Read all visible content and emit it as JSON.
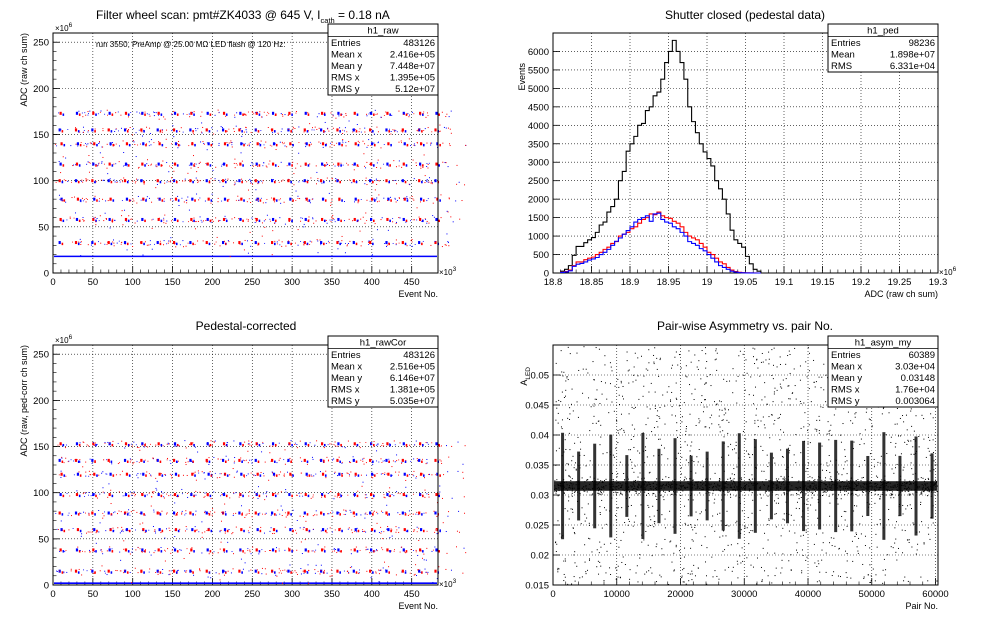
{
  "chart_data": [
    {
      "type": "scatter",
      "id": "p1",
      "title": "Filter wheel scan: pmt#ZK4033 @   645 V, I",
      "title_sub": "cath",
      "title_tail": " = 0.18 nA",
      "annotation": "run 3550, PreAmp @ 25.00 MΩ LED flash @  120 Hz:",
      "xlabel": "Event No.",
      "ylabel": "ADC (raw ch sum)",
      "x_multiplier": "×10",
      "x_multiplier_exp": "3",
      "y_multiplier": "×10",
      "y_multiplier_exp": "6",
      "xlim": [
        0,
        483
      ],
      "ylim": [
        0,
        260
      ],
      "xticks": [
        "0",
        "50",
        "100",
        "150",
        "200",
        "250",
        "300",
        "350",
        "400",
        "450"
      ],
      "yticks": [
        "0",
        "50",
        "100",
        "150",
        "200",
        "250"
      ],
      "grid": true,
      "stats": {
        "name": "h1_raw",
        "rows": [
          [
            "Entries",
            "483126"
          ],
          [
            "Mean x",
            "2.416e+05"
          ],
          [
            "Mean y",
            "7.448e+07"
          ],
          [
            "RMS x",
            "1.395e+05"
          ],
          [
            "RMS y",
            "5.12e+07"
          ]
        ]
      },
      "levels": [
        18,
        33,
        58,
        80,
        100,
        118,
        140,
        155,
        173
      ],
      "series": [
        {
          "color": "#0000ff",
          "style": "alternating-blocks"
        },
        {
          "color": "#ff0000",
          "style": "alternating-blocks"
        }
      ]
    },
    {
      "type": "histogram",
      "id": "p2",
      "title": "Shutter closed (pedestal data)",
      "xlabel": "ADC (raw ch sum)",
      "ylabel": "Events",
      "x_multiplier": "×10",
      "x_multiplier_exp": "6",
      "xlim": [
        18.8,
        19.3
      ],
      "ylim": [
        0,
        6500
      ],
      "xticks": [
        "18.8",
        "18.85",
        "18.9",
        "18.95",
        "19",
        "19.05",
        "19.1",
        "19.15",
        "19.2",
        "19.25",
        "19.3"
      ],
      "yticks": [
        "0",
        "500",
        "1000",
        "1500",
        "2000",
        "2500",
        "3000",
        "3500",
        "4000",
        "4500",
        "5000",
        "5500",
        "6000"
      ],
      "grid": true,
      "stats": {
        "name": "h1_ped",
        "rows": [
          [
            "Entries",
            "98236"
          ],
          [
            "Mean",
            "1.898e+07"
          ],
          [
            "RMS",
            "6.331e+04"
          ]
        ]
      },
      "bin_start": 18.81,
      "bin_width": 0.005,
      "series": [
        {
          "color": "#000000",
          "values": [
            50,
            100,
            200,
            480,
            720,
            720,
            820,
            900,
            960,
            1100,
            1300,
            1380,
            1650,
            1800,
            2000,
            2500,
            2750,
            3300,
            3500,
            3700,
            4000,
            4050,
            4400,
            4500,
            4800,
            4900,
            5250,
            5700,
            6000,
            6300,
            6000,
            5700,
            5250,
            4500,
            4100,
            3800,
            3500,
            3280,
            3100,
            2900,
            2500,
            2280,
            2000,
            1600,
            1160,
            900,
            800,
            700,
            450,
            250,
            100,
            50
          ]
        },
        {
          "color": "#ff0000",
          "values": [
            20,
            40,
            80,
            200,
            300,
            300,
            360,
            400,
            430,
            500,
            560,
            640,
            700,
            800,
            850,
            1000,
            1050,
            1100,
            1200,
            1250,
            1350,
            1450,
            1500,
            1600,
            1580,
            1650,
            1550,
            1500,
            1480,
            1400,
            1350,
            1250,
            1100,
            1000,
            950,
            900,
            800,
            700,
            560,
            500,
            400,
            300,
            250,
            150,
            80,
            40,
            20,
            10,
            5,
            2,
            1,
            0
          ]
        },
        {
          "color": "#0000ff",
          "values": [
            15,
            30,
            60,
            180,
            240,
            260,
            300,
            350,
            380,
            420,
            500,
            560,
            640,
            750,
            860,
            950,
            1050,
            1150,
            1250,
            1380,
            1450,
            1500,
            1550,
            1400,
            1600,
            1620,
            1450,
            1380,
            1350,
            1250,
            1200,
            1100,
            1000,
            850,
            800,
            750,
            660,
            600,
            500,
            400,
            300,
            200,
            150,
            100,
            50,
            25,
            10,
            5,
            2,
            1,
            0,
            0
          ]
        }
      ]
    },
    {
      "type": "scatter",
      "id": "p3",
      "title": "Pedestal-corrected",
      "xlabel": "Event No.",
      "ylabel": "ADC (raw, ped-corr ch sum)",
      "x_multiplier": "×10",
      "x_multiplier_exp": "3",
      "y_multiplier": "×10",
      "y_multiplier_exp": "6",
      "xlim": [
        0,
        483
      ],
      "ylim": [
        0,
        260
      ],
      "xticks": [
        "0",
        "50",
        "100",
        "150",
        "200",
        "250",
        "300",
        "350",
        "400",
        "450"
      ],
      "yticks": [
        "0",
        "50",
        "100",
        "150",
        "200",
        "250"
      ],
      "grid": true,
      "stats": {
        "name": "h1_rawCor",
        "rows": [
          [
            "Entries",
            "483126"
          ],
          [
            "Mean x",
            "2.516e+05"
          ],
          [
            "Mean y",
            "6.146e+07"
          ],
          [
            "RMS x",
            "1.381e+05"
          ],
          [
            "RMS y",
            "5.035e+07"
          ]
        ]
      },
      "levels": [
        2,
        15,
        38,
        60,
        78,
        98,
        120,
        135,
        153
      ],
      "series": [
        {
          "color": "#0000ff",
          "style": "alternating-blocks"
        },
        {
          "color": "#ff0000",
          "style": "alternating-blocks"
        }
      ]
    },
    {
      "type": "scatter",
      "id": "p4",
      "title": "Pair-wise Asymmetry vs. pair No.",
      "xlabel": "Pair No.",
      "ylabel": "A",
      "ylabel_sub": "LED",
      "xlim": [
        0,
        60389
      ],
      "ylim": [
        0.015,
        0.055
      ],
      "xticks": [
        "0",
        "10000",
        "20000",
        "30000",
        "40000",
        "50000",
        "60000"
      ],
      "yticks": [
        "0.015",
        "0.02",
        "0.025",
        "0.03",
        "0.035",
        "0.04",
        "0.045",
        "0.05"
      ],
      "grid": true,
      "stats": {
        "name": "h1_asym_my",
        "rows": [
          [
            "Entries",
            "60389"
          ],
          [
            "Mean x",
            "3.03e+04"
          ],
          [
            "Mean y",
            "0.03148"
          ],
          [
            "RMS x",
            "1.76e+04"
          ],
          [
            "RMS y",
            "0.003064"
          ]
        ]
      },
      "band_center": 0.0315,
      "band_halfwidth": 0.0008,
      "series": [
        {
          "color": "#000000"
        }
      ]
    }
  ]
}
